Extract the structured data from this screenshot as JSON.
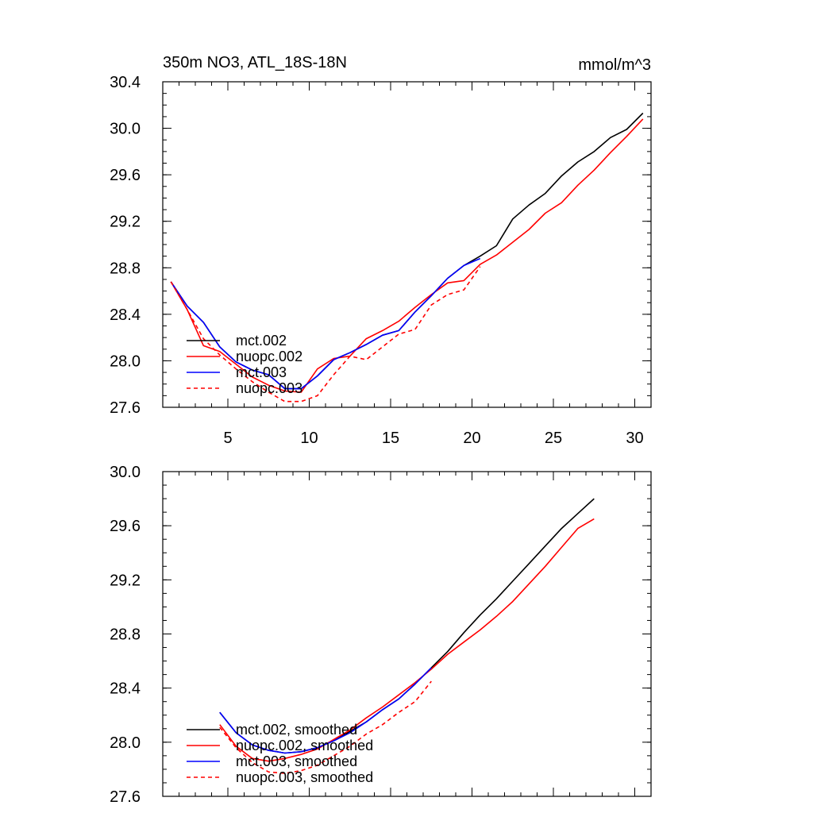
{
  "chart_data": [
    {
      "type": "line",
      "title": "350m NO3, ATL_18S-18N",
      "units": "mmol/m^3",
      "xlim": [
        1,
        31
      ],
      "ylim": [
        27.6,
        30.4
      ],
      "xticks": [
        5,
        10,
        15,
        20,
        25,
        30
      ],
      "xtick_labels": [
        "5",
        "10",
        "15",
        "20",
        "25",
        "30"
      ],
      "yticks": [
        27.6,
        28.0,
        28.4,
        28.8,
        29.2,
        29.6,
        30.0,
        30.4
      ],
      "ytick_labels": [
        "27.6",
        "28.0",
        "28.4",
        "28.8",
        "29.2",
        "29.6",
        "30.0",
        "30.4"
      ],
      "legend_position": "bottom-left",
      "series": [
        {
          "name": "mct.002",
          "color": "#000000",
          "dash": "solid",
          "x": [
            1.5,
            2.5,
            3.5,
            4.5,
            5.5,
            6.5,
            7.5,
            8.5,
            9.5,
            10.5,
            11.5,
            12.5,
            13.5,
            14.5,
            15.5,
            16.5,
            17.5,
            18.5,
            19.5,
            20.5,
            21.5,
            22.5,
            23.5,
            24.5,
            25.5,
            26.5,
            27.5,
            28.5,
            29.5,
            30.5
          ],
          "y": [
            28.68,
            28.47,
            28.33,
            28.12,
            27.99,
            27.92,
            27.88,
            27.76,
            27.76,
            27.87,
            28.01,
            28.07,
            28.14,
            28.22,
            28.26,
            28.42,
            28.56,
            28.71,
            28.82,
            28.9,
            28.99,
            29.22,
            29.34,
            29.44,
            29.59,
            29.71,
            29.8,
            29.92,
            29.99,
            30.13
          ]
        },
        {
          "name": "nuopc.002",
          "color": "#ff0000",
          "dash": "solid",
          "x": [
            1.5,
            2.5,
            3.5,
            4.5,
            5.5,
            6.5,
            7.5,
            8.5,
            9.5,
            10.5,
            11.5,
            12.5,
            13.5,
            14.5,
            15.5,
            16.5,
            17.5,
            18.5,
            19.5,
            20.5,
            21.5,
            22.5,
            23.5,
            24.5,
            25.5,
            26.5,
            27.5,
            28.5,
            29.5,
            30.5
          ],
          "y": [
            28.68,
            28.44,
            28.13,
            28.08,
            27.97,
            27.86,
            27.79,
            27.74,
            27.73,
            27.93,
            28.02,
            28.04,
            28.19,
            28.26,
            28.34,
            28.46,
            28.57,
            28.67,
            28.69,
            28.83,
            28.91,
            29.02,
            29.13,
            29.27,
            29.36,
            29.51,
            29.64,
            29.79,
            29.93,
            30.08
          ]
        },
        {
          "name": "mct.003",
          "color": "#0000ff",
          "dash": "solid",
          "x": [
            1.5,
            2.5,
            3.5,
            4.5,
            5.5,
            6.5,
            7.5,
            8.5,
            9.5,
            10.5,
            11.5,
            12.5,
            13.5,
            14.5,
            15.5,
            16.5,
            17.5,
            18.5,
            19.5,
            20.5
          ],
          "y": [
            28.68,
            28.47,
            28.33,
            28.12,
            27.99,
            27.92,
            27.88,
            27.76,
            27.76,
            27.87,
            28.01,
            28.07,
            28.14,
            28.22,
            28.26,
            28.42,
            28.56,
            28.71,
            28.82,
            28.88
          ]
        },
        {
          "name": "nuopc.003",
          "color": "#ff0000",
          "dash": "dashed",
          "x": [
            1.5,
            2.5,
            3.5,
            4.5,
            5.5,
            6.5,
            7.5,
            8.5,
            9.5,
            10.5,
            11.5,
            12.5,
            13.5,
            14.5,
            15.5,
            16.5,
            17.5,
            18.5,
            19.5,
            20.5
          ],
          "y": [
            28.68,
            28.44,
            28.19,
            28.05,
            27.93,
            27.82,
            27.73,
            27.65,
            27.65,
            27.7,
            27.88,
            28.04,
            28.01,
            28.12,
            28.23,
            28.27,
            28.48,
            28.57,
            28.61,
            28.81
          ]
        }
      ]
    },
    {
      "type": "line",
      "title": "",
      "units": "",
      "xlim": [
        1,
        31
      ],
      "ylim": [
        27.6,
        30.0
      ],
      "xticks": [
        5,
        10,
        15,
        20,
        25,
        30
      ],
      "xtick_labels": [
        "",
        "",
        "",
        "",
        "",
        ""
      ],
      "yticks": [
        27.6,
        28.0,
        28.4,
        28.8,
        29.2,
        29.6,
        30.0
      ],
      "ytick_labels": [
        "27.6",
        "28.0",
        "28.4",
        "28.8",
        "29.2",
        "29.6",
        "30.0"
      ],
      "legend_position": "bottom-left",
      "series": [
        {
          "name": "mct.002, smoothed",
          "color": "#000000",
          "dash": "solid",
          "x": [
            4.5,
            5.5,
            6.5,
            7.5,
            8.5,
            9.5,
            10.5,
            11.5,
            12.5,
            13.5,
            14.5,
            15.5,
            16.5,
            17.5,
            18.5,
            19.5,
            20.5,
            21.5,
            22.5,
            23.5,
            24.5,
            25.5,
            26.5,
            27.5
          ],
          "y": [
            28.22,
            28.07,
            27.98,
            27.94,
            27.92,
            27.93,
            27.96,
            28.01,
            28.08,
            28.15,
            28.24,
            28.32,
            28.43,
            28.55,
            28.67,
            28.81,
            28.94,
            29.06,
            29.19,
            29.32,
            29.45,
            29.58,
            29.69,
            29.8
          ]
        },
        {
          "name": "nuopc.002, smoothed",
          "color": "#ff0000",
          "dash": "solid",
          "x": [
            4.5,
            5.5,
            6.5,
            7.5,
            8.5,
            9.5,
            10.5,
            11.5,
            12.5,
            13.5,
            14.5,
            15.5,
            16.5,
            17.5,
            18.5,
            19.5,
            20.5,
            21.5,
            22.5,
            23.5,
            24.5,
            25.5,
            26.5,
            27.5
          ],
          "y": [
            28.13,
            27.97,
            27.88,
            27.86,
            27.88,
            27.91,
            27.95,
            28.02,
            28.09,
            28.18,
            28.26,
            28.35,
            28.44,
            28.54,
            28.65,
            28.74,
            28.83,
            28.93,
            29.04,
            29.17,
            29.3,
            29.44,
            29.58,
            29.65
          ]
        },
        {
          "name": "mct.003, smoothed",
          "color": "#0000ff",
          "dash": "solid",
          "x": [
            4.5,
            5.5,
            6.5,
            7.5,
            8.5,
            9.5,
            10.5,
            11.5,
            12.5,
            13.5,
            14.5,
            15.5,
            16.5,
            17.5
          ],
          "y": [
            28.22,
            28.07,
            27.98,
            27.94,
            27.92,
            27.93,
            27.96,
            28.01,
            28.07,
            28.15,
            28.24,
            28.32,
            28.43,
            28.55
          ]
        },
        {
          "name": "nuopc.003, smoothed",
          "color": "#ff0000",
          "dash": "dashed",
          "x": [
            4.5,
            5.5,
            6.5,
            7.5,
            8.5,
            9.5,
            10.5,
            11.5,
            12.5,
            13.5,
            14.5,
            15.5,
            16.5,
            17.5
          ],
          "y": [
            28.11,
            27.96,
            27.85,
            27.78,
            27.77,
            27.79,
            27.83,
            27.9,
            27.97,
            28.06,
            28.13,
            28.22,
            28.3,
            28.45
          ]
        }
      ]
    }
  ]
}
